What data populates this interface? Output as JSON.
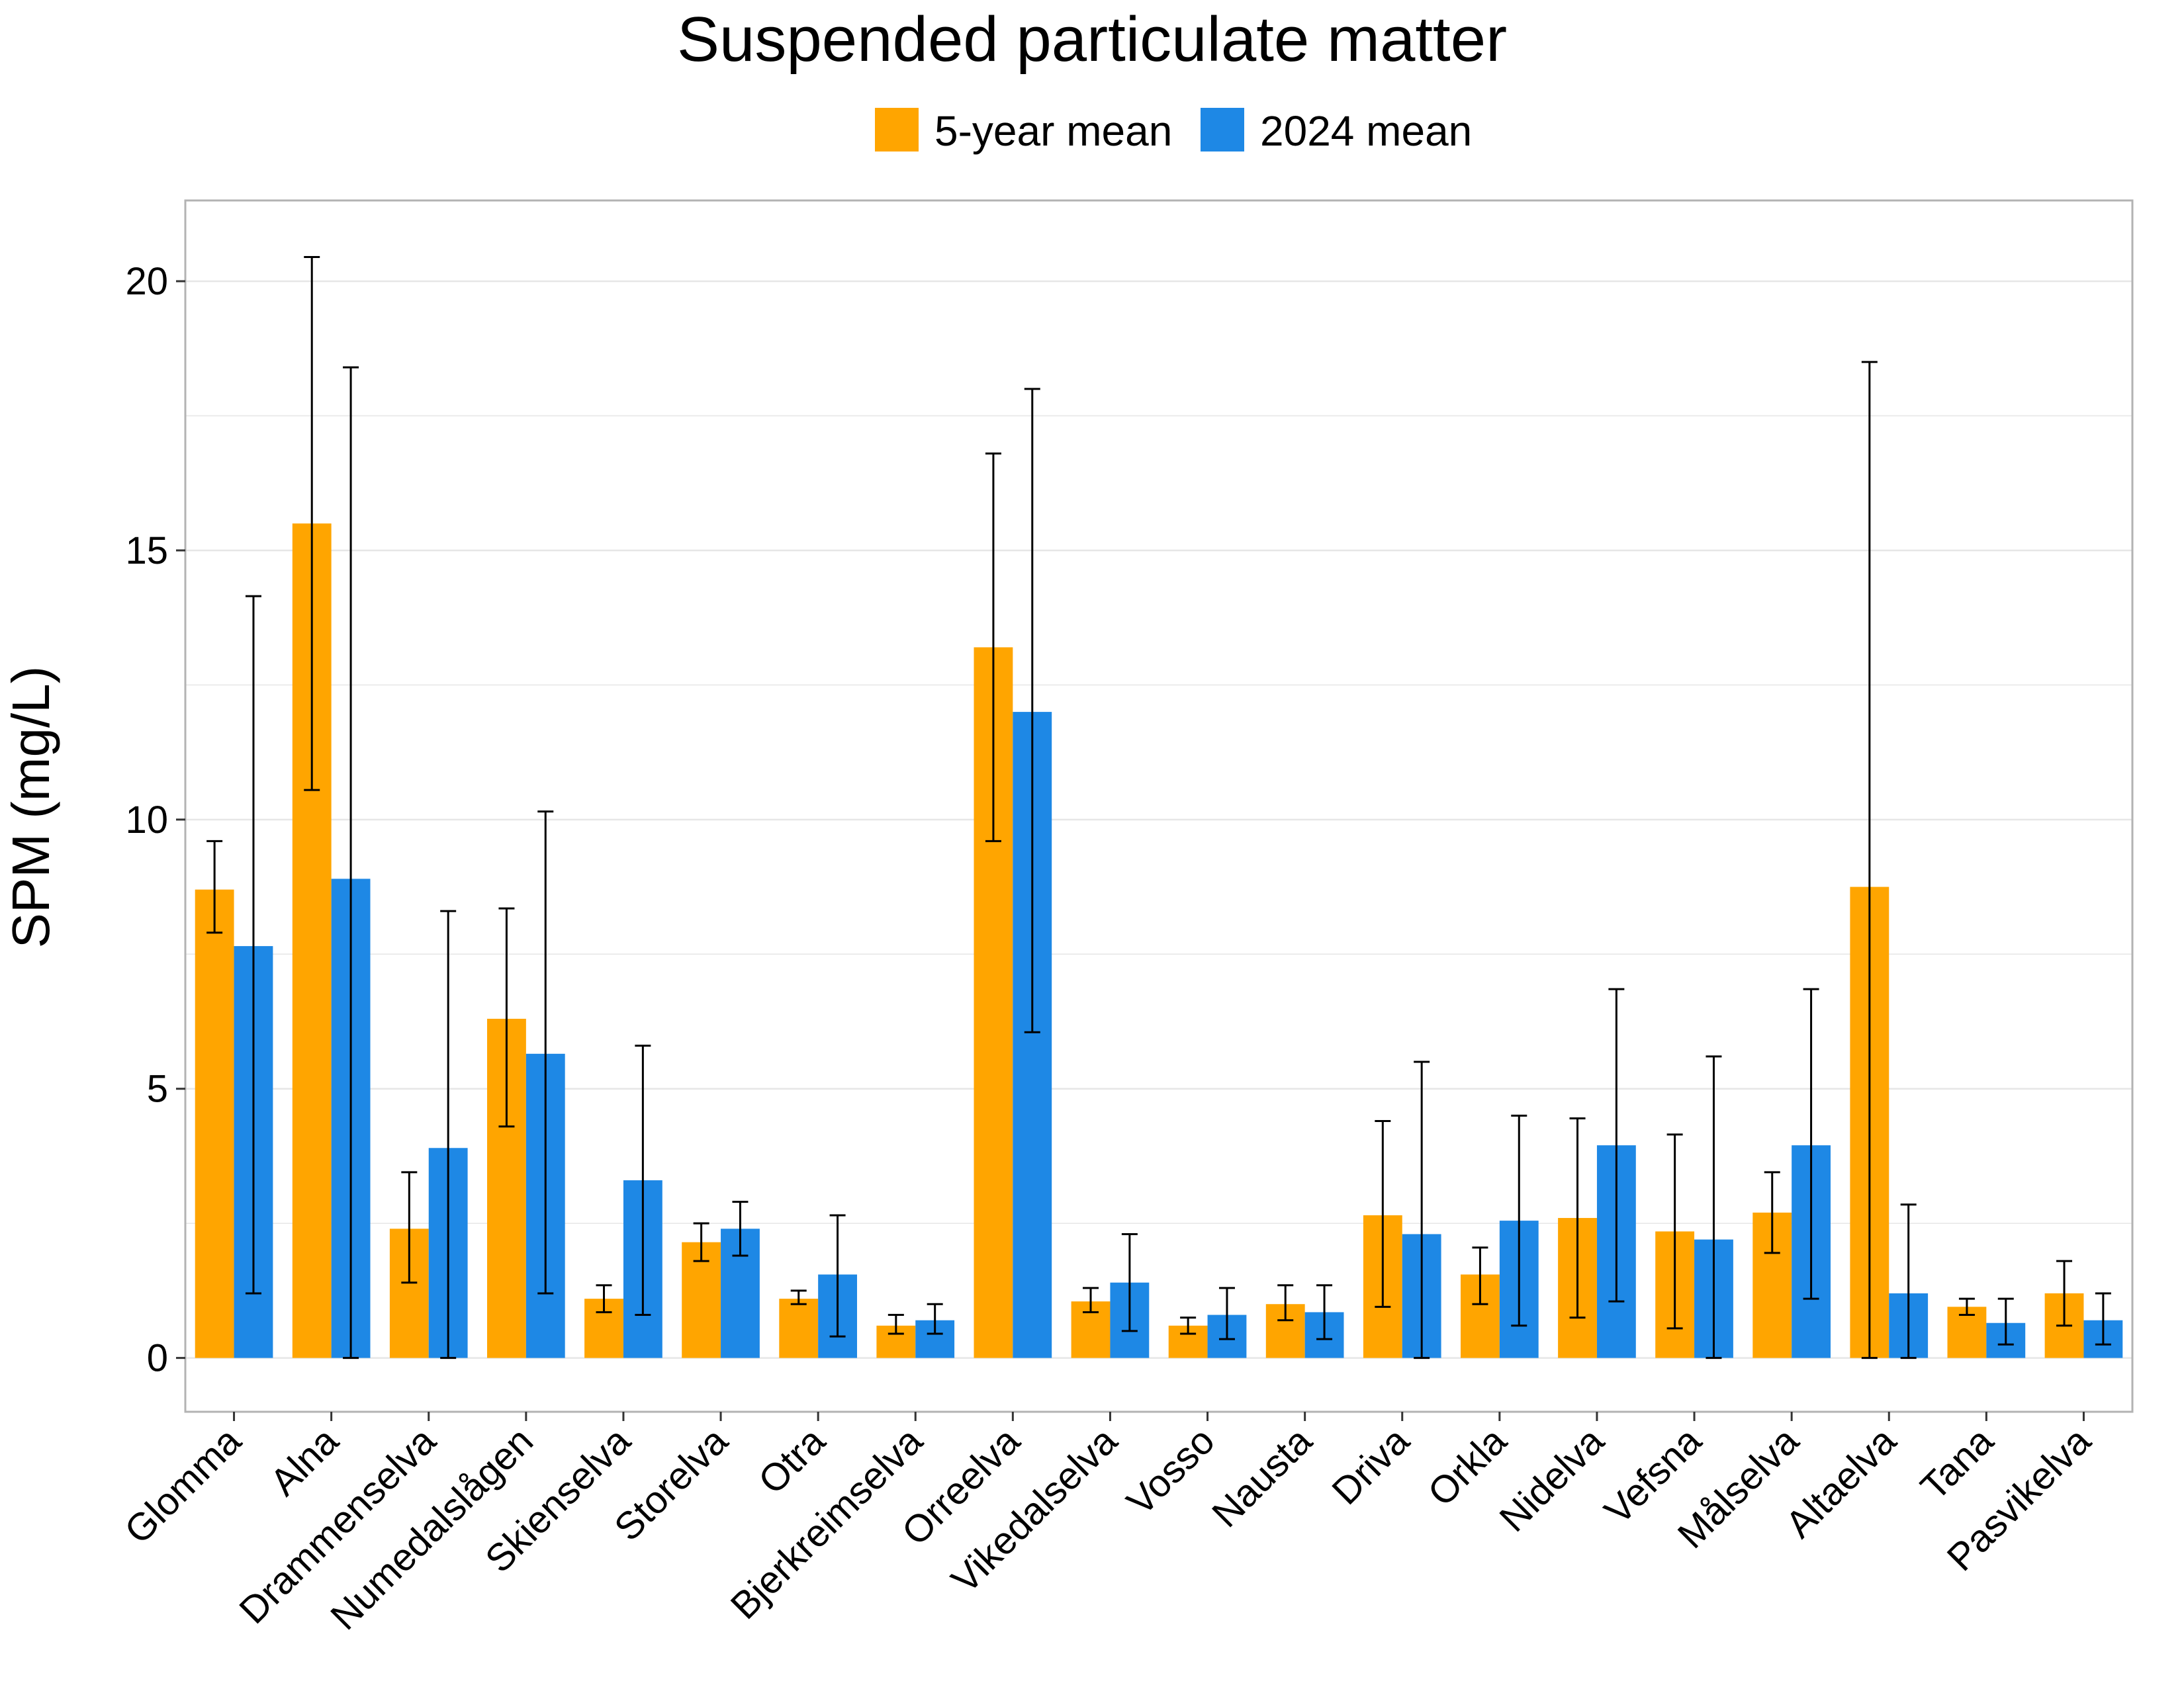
{
  "chart_data": {
    "type": "bar",
    "title": "Suspended particulate matter",
    "xlabel": "",
    "ylabel": "SPM (mg/L)",
    "ylim": [
      -1,
      21.5
    ],
    "yticks": [
      0,
      5,
      10,
      15,
      20
    ],
    "grid": true,
    "legend_position": "top-center",
    "categories": [
      "Glomma",
      "Alna",
      "Drammenselva",
      "Numedalslågen",
      "Skienselva",
      "Storelva",
      "Otra",
      "Bjerkreimselva",
      "Orreelva",
      "Vikedalselva",
      "Vosso",
      "Nausta",
      "Driva",
      "Orkla",
      "Nidelva",
      "Vefsna",
      "Målselva",
      "Altaelva",
      "Tana",
      "Pasvikelva"
    ],
    "series": [
      {
        "name": "5-year mean",
        "color": "#FFA500",
        "values": [
          8.7,
          15.5,
          2.4,
          6.3,
          1.1,
          2.15,
          1.1,
          0.6,
          13.2,
          1.05,
          0.6,
          1.0,
          2.65,
          1.55,
          2.6,
          2.35,
          2.7,
          8.75,
          0.95,
          1.2
        ],
        "error_low": [
          7.9,
          10.55,
          1.4,
          4.3,
          0.85,
          1.8,
          1.0,
          0.45,
          9.6,
          0.85,
          0.45,
          0.7,
          0.95,
          1.0,
          0.75,
          0.55,
          1.95,
          0.0,
          0.8,
          0.6
        ],
        "error_high": [
          9.6,
          20.45,
          3.45,
          8.35,
          1.35,
          2.5,
          1.25,
          0.8,
          16.8,
          1.3,
          0.75,
          1.35,
          4.4,
          2.05,
          4.45,
          4.15,
          3.45,
          18.5,
          1.1,
          1.8
        ]
      },
      {
        "name": "2024 mean",
        "color": "#1E88E5",
        "values": [
          7.65,
          8.9,
          3.9,
          5.65,
          3.3,
          2.4,
          1.55,
          0.7,
          12.0,
          1.4,
          0.8,
          0.85,
          2.3,
          2.55,
          3.95,
          2.2,
          3.95,
          1.2,
          0.65,
          0.7
        ],
        "error_low": [
          1.2,
          0.0,
          0.0,
          1.2,
          0.8,
          1.9,
          0.4,
          0.45,
          6.05,
          0.5,
          0.35,
          0.35,
          0.0,
          0.6,
          1.05,
          0.0,
          1.1,
          0.0,
          0.25,
          0.25
        ],
        "error_high": [
          14.15,
          18.4,
          8.3,
          10.15,
          5.8,
          2.9,
          2.65,
          1.0,
          18.0,
          2.3,
          1.3,
          1.35,
          5.5,
          4.5,
          6.85,
          5.6,
          6.85,
          2.85,
          1.1,
          1.2
        ]
      }
    ]
  }
}
